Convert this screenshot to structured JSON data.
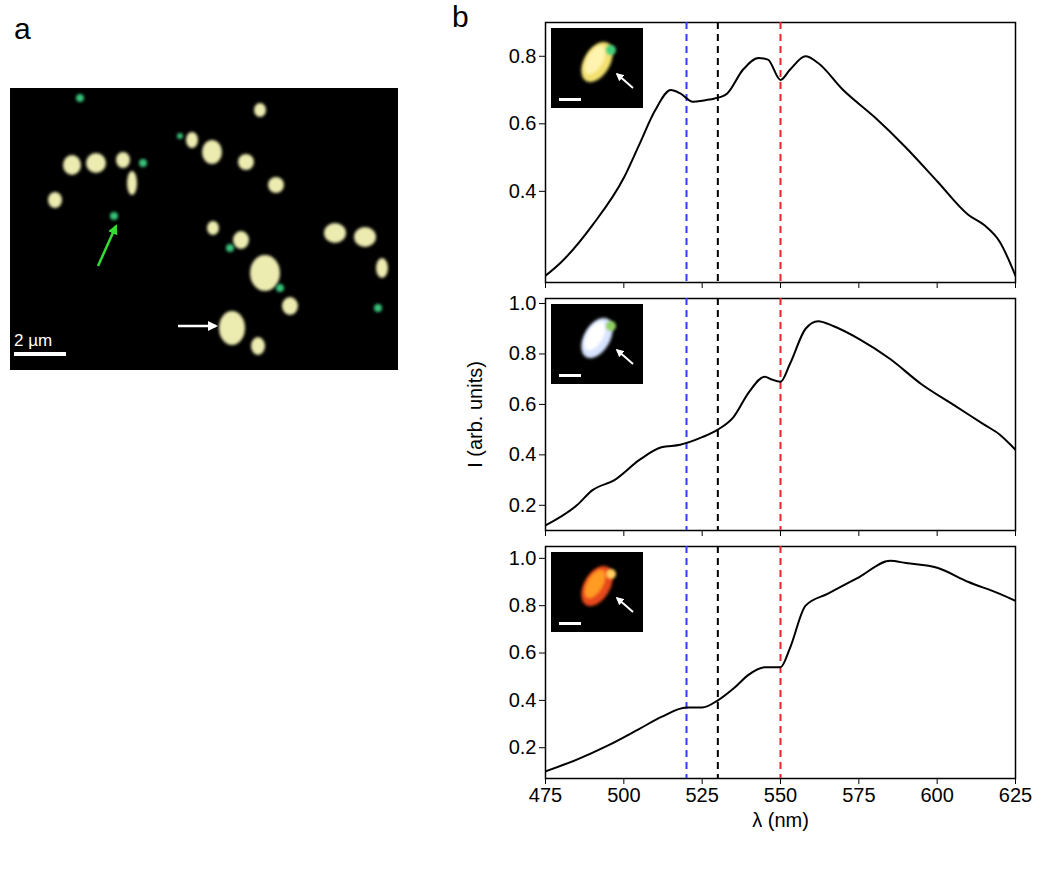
{
  "figure": {
    "panel_labels": [
      "a",
      "b"
    ],
    "image": {
      "scale_bar": "2 µm"
    }
  },
  "chart_data": [
    {
      "type": "line",
      "x": [
        475,
        480,
        490,
        500,
        505,
        510,
        515,
        518,
        522,
        526,
        529,
        533,
        538,
        543,
        546,
        550,
        553,
        558,
        562,
        570,
        580,
        590,
        600,
        610,
        615,
        620,
        625
      ],
      "series": [
        {
          "color": "#000000",
          "values": [
            0.15,
            0.19,
            0.3,
            0.44,
            0.54,
            0.64,
            0.7,
            0.69,
            0.665,
            0.67,
            0.675,
            0.69,
            0.76,
            0.795,
            0.79,
            0.73,
            0.76,
            0.8,
            0.78,
            0.7,
            0.62,
            0.53,
            0.43,
            0.33,
            0.3,
            0.25,
            0.15
          ]
        }
      ],
      "xlim": [
        475,
        625
      ],
      "xticks": [
        475,
        500,
        525,
        550,
        575,
        600,
        625
      ],
      "ylim": [
        0.13,
        0.9
      ],
      "yticks": [
        0.4,
        0.6,
        0.8
      ],
      "tick_labels": "y",
      "vlines": [
        {
          "x": 520,
          "color": "#2f3dff",
          "line_style": "dashed"
        },
        {
          "x": 530,
          "color": "#000000",
          "line_style": "dashed"
        },
        {
          "x": 550,
          "color": "#e8242b",
          "line_style": "dashed"
        }
      ]
    },
    {
      "type": "line",
      "ylabel": "I (arb. units)",
      "x": [
        475,
        485,
        490,
        497,
        505,
        512,
        518,
        525,
        530,
        535,
        540,
        545,
        547,
        550,
        553,
        558,
        562,
        567,
        575,
        585,
        595,
        605,
        615,
        620,
        625
      ],
      "series": [
        {
          "color": "#000000",
          "values": [
            0.12,
            0.2,
            0.26,
            0.3,
            0.38,
            0.43,
            0.44,
            0.47,
            0.5,
            0.55,
            0.65,
            0.71,
            0.7,
            0.69,
            0.76,
            0.9,
            0.93,
            0.91,
            0.86,
            0.78,
            0.68,
            0.6,
            0.52,
            0.48,
            0.42
          ]
        }
      ],
      "xlim": [
        475,
        625
      ],
      "xticks": [
        475,
        500,
        525,
        550,
        575,
        600,
        625
      ],
      "ylim": [
        0.1,
        1.02
      ],
      "yticks": [
        0.2,
        0.4,
        0.6,
        0.8,
        {
          "value": 1,
          "label": "1.0"
        }
      ],
      "tick_labels": "y",
      "vlines": [
        {
          "x": 520,
          "color": "#2f3dff",
          "line_style": "dashed"
        },
        {
          "x": 530,
          "color": "#000000",
          "line_style": "dashed"
        },
        {
          "x": 550,
          "color": "#e8242b",
          "line_style": "dashed"
        }
      ]
    },
    {
      "type": "line",
      "xlabel": "λ (nm)",
      "x": [
        475,
        485,
        495,
        505,
        512,
        520,
        525,
        530,
        535,
        540,
        545,
        550,
        553,
        558,
        565,
        575,
        585,
        590,
        600,
        610,
        620,
        625
      ],
      "series": [
        {
          "color": "#000000",
          "values": [
            0.1,
            0.15,
            0.21,
            0.28,
            0.33,
            0.37,
            0.37,
            0.4,
            0.45,
            0.51,
            0.54,
            0.54,
            0.62,
            0.8,
            0.85,
            0.92,
            0.99,
            0.98,
            0.96,
            0.9,
            0.85,
            0.82
          ]
        }
      ],
      "xlim": [
        475,
        625
      ],
      "xticks": [
        475,
        500,
        525,
        550,
        575,
        600,
        625
      ],
      "ylim": [
        0.07,
        1.05
      ],
      "yticks": [
        0.2,
        0.4,
        0.6,
        0.8,
        {
          "value": 1,
          "label": "1.0"
        }
      ],
      "vlines": [
        {
          "x": 520,
          "color": "#2f3dff",
          "line_style": "dashed"
        },
        {
          "x": 530,
          "color": "#000000",
          "line_style": "dashed"
        },
        {
          "x": 550,
          "color": "#e8242b",
          "line_style": "dashed"
        }
      ]
    }
  ]
}
